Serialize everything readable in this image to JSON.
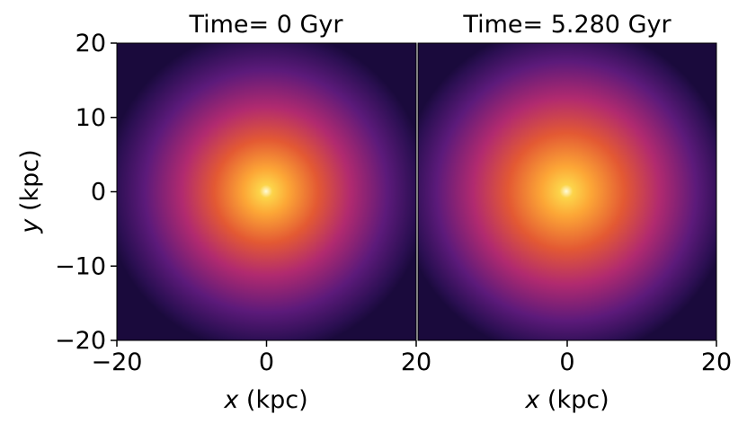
{
  "chart_data": [
    {
      "type": "heatmap",
      "title": "Time= 0 Gyr",
      "xlabel_var": "x",
      "xlabel_unit": " (kpc)",
      "ylabel_var": "y",
      "ylabel_unit": " (kpc)",
      "xlim": [
        -20,
        20
      ],
      "ylim": [
        -20,
        20
      ],
      "x_ticks": [
        {
          "value": -20,
          "label": "−20"
        },
        {
          "value": 0,
          "label": "0"
        },
        {
          "value": 20,
          "label": "20"
        }
      ],
      "y_ticks": [
        {
          "value": 20,
          "label": "20"
        },
        {
          "value": 10,
          "label": "10"
        },
        {
          "value": 0,
          "label": "0"
        },
        {
          "value": -10,
          "label": "−10"
        },
        {
          "value": -20,
          "label": "−20"
        }
      ],
      "center": [
        0,
        0
      ],
      "colormap": "inferno",
      "grid": false
    },
    {
      "type": "heatmap",
      "title": "Time= 5.280 Gyr",
      "xlabel_var": "x",
      "xlabel_unit": " (kpc)",
      "xlim": [
        -20,
        20
      ],
      "ylim": [
        -20,
        20
      ],
      "x_ticks": [
        {
          "value": 0,
          "label": "0"
        },
        {
          "value": 20,
          "label": "20"
        }
      ],
      "center": [
        0,
        0
      ],
      "colormap": "inferno",
      "grid": false
    }
  ],
  "colors": {
    "core": "#fffbd8",
    "inner": "#fca636",
    "mid": "#e35933",
    "outer": "#b12a6f",
    "edge": "#5c1a7a",
    "background": "#1a0a3c"
  }
}
